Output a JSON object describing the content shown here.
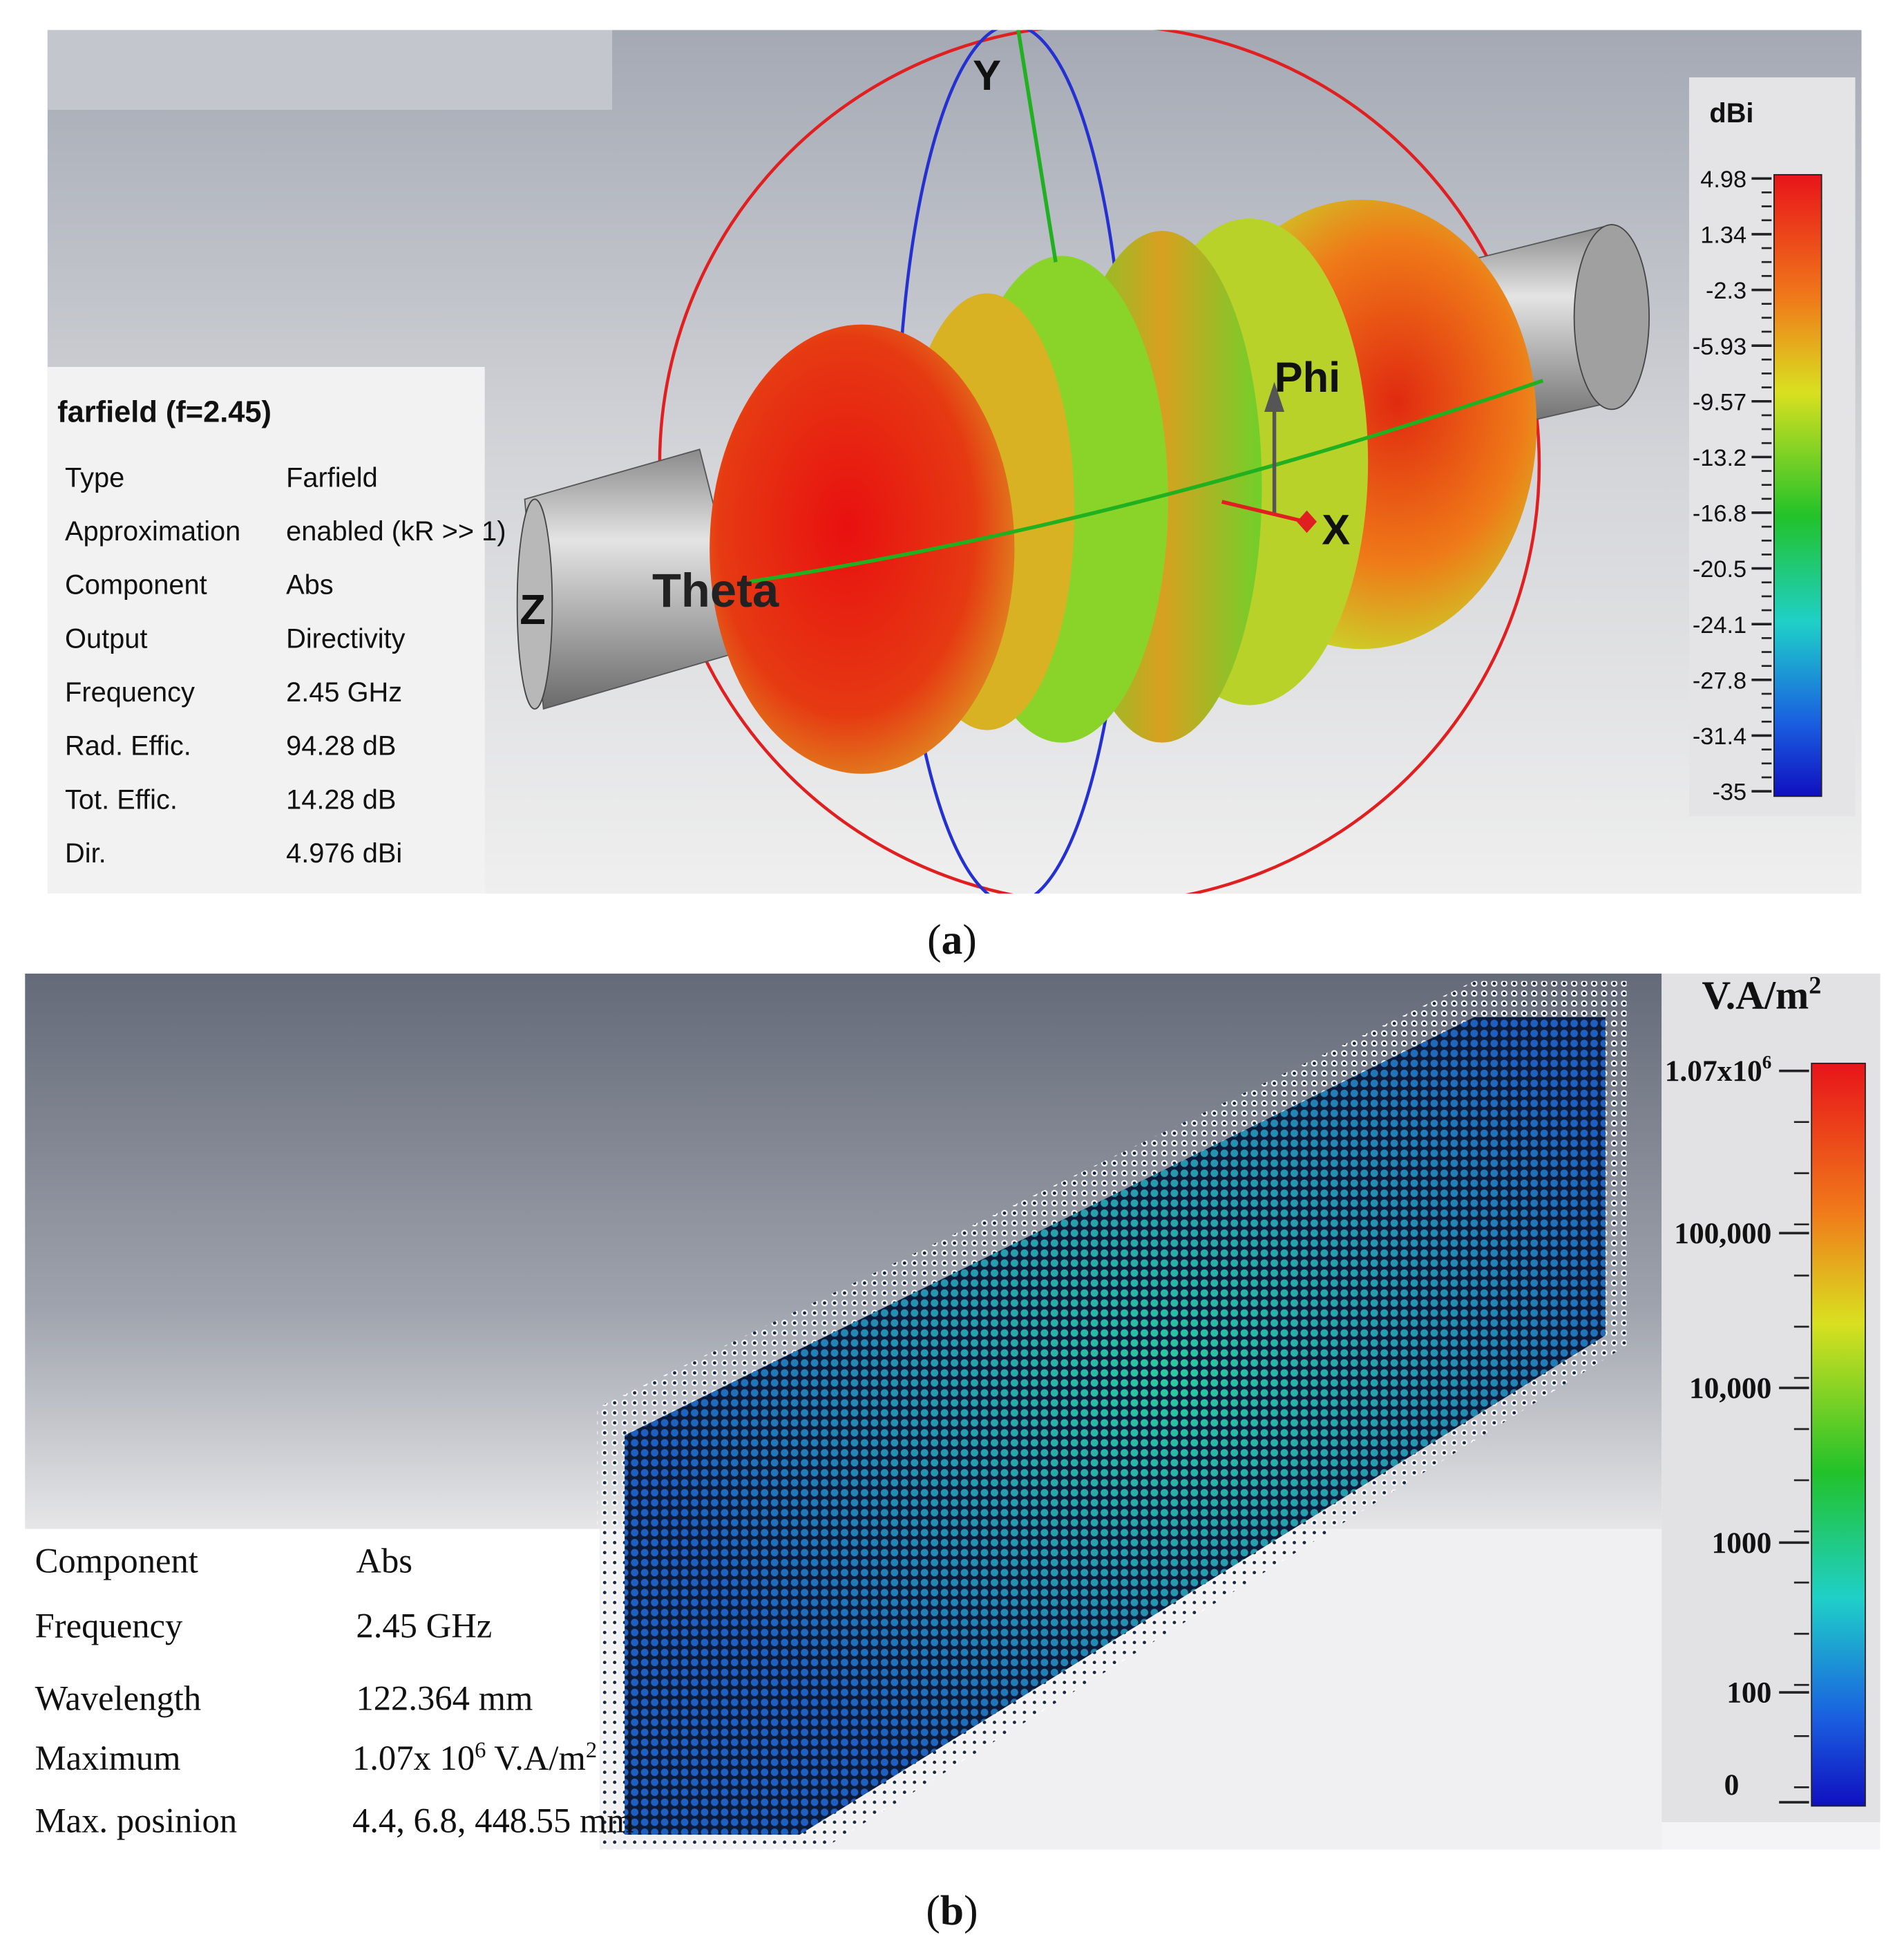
{
  "panel_a": {
    "info": {
      "title": "farfield (f=2.45)",
      "rows": [
        [
          "Type",
          "Farfield"
        ],
        [
          "Approximation",
          "enabled (kR >> 1)"
        ],
        [
          "Component",
          "Abs"
        ],
        [
          "Output",
          "Directivity"
        ],
        [
          "Frequency",
          "2.45 GHz"
        ],
        [
          "Rad. Effic.",
          "94.28 dB"
        ],
        [
          "Tot. Effic.",
          "14.28 dB"
        ],
        [
          "Dir.",
          "4.976 dBi"
        ]
      ]
    },
    "colorbar": {
      "unit": "dBi",
      "ticks": [
        "4.98",
        "1.34",
        "-2.3",
        "-5.93",
        "-9.57",
        "-13.2",
        "-16.8",
        "-20.5",
        "-24.1",
        "-27.8",
        "-31.4",
        "-35"
      ]
    },
    "axes": {
      "y": "Y",
      "phi": "Phi",
      "x": "X",
      "z": "Z",
      "theta": "Theta"
    },
    "caption": [
      "(",
      "a",
      ")"
    ]
  },
  "panel_b": {
    "rows": [
      [
        "Component",
        "Abs"
      ],
      [
        "Frequency",
        "2.45 GHz"
      ],
      [
        "Wavelength",
        "122.364 mm"
      ]
    ],
    "maximum": {
      "label": "Maximum",
      "base": "1.07x 10",
      "exponent": "6",
      "unit": " V.A/m",
      "unit_exponent": "2"
    },
    "position": [
      "Max. posinion",
      "4.4, 6.8, 448.55 mm"
    ],
    "colorbar": {
      "unit": {
        "base": "V.A/m",
        "exponent": "2"
      },
      "top": {
        "base": "1.07x10",
        "exponent": "6"
      },
      "ticks": [
        "100,000",
        "10,000",
        "1000",
        "100",
        "0"
      ]
    },
    "caption": [
      "(",
      "b",
      ")"
    ]
  }
}
